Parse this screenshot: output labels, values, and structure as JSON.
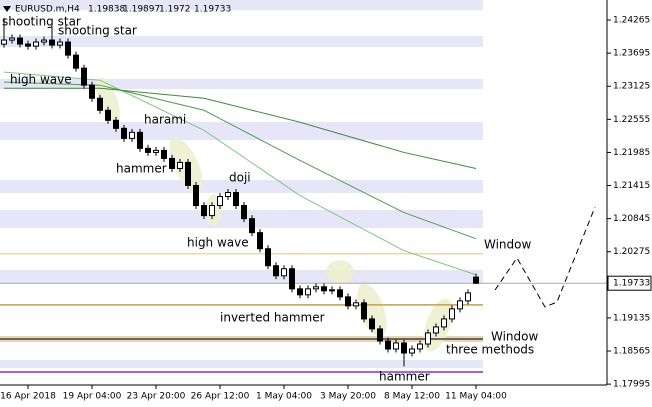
{
  "chart_data": {
    "type": "candlestick",
    "title": "EURUSD.m,H4",
    "categories": [
      null,
      null,
      null,
      "16 Apr 2018",
      null,
      null,
      null,
      null,
      null,
      null,
      null,
      "19 Apr 04:00",
      null,
      null,
      null,
      null,
      null,
      null,
      null,
      "23 Apr 20:00",
      null,
      null,
      null,
      null,
      null,
      null,
      null,
      "26 Apr 12:00",
      null,
      null,
      null,
      null,
      null,
      null,
      null,
      "1 May 04:00",
      null,
      null,
      null,
      null,
      null,
      null,
      null,
      "3 May 20:00",
      null,
      null,
      null,
      null,
      null,
      null,
      null,
      "8 May 12:00",
      null,
      null,
      null,
      null,
      null,
      null,
      null,
      "11 May 04:00"
    ],
    "open": [
      1.2385,
      1.2392,
      1.23955,
      1.23851,
      1.23816,
      1.23886,
      1.2392,
      1.23834,
      1.23886,
      1.23661,
      1.23436,
      1.23143,
      1.22918,
      1.22711,
      1.22538,
      1.224,
      1.22227,
      1.22331,
      1.22055,
      1.21985,
      1.2202,
      1.21882,
      1.21709,
      1.21813,
      1.21416,
      1.2107,
      1.20897,
      1.2107,
      1.21225,
      1.21295,
      1.2107,
      1.20845,
      1.20604,
      1.20327,
      1.20034,
      1.19861,
      1.19982,
      1.19636,
      1.19533,
      1.19636,
      1.19671,
      1.19602,
      1.19619,
      1.19498,
      1.19343,
      1.19395,
      1.19118,
      1.18946,
      1.18738,
      1.186,
      1.18704,
      1.18531,
      1.186,
      1.18686,
      1.18876,
      1.1898,
      1.19118,
      1.19291,
      1.19429,
      1.19838
    ],
    "high": [
      1.243,
      1.24015,
      1.24015,
      1.23911,
      1.23946,
      1.2398,
      1.2415,
      1.23946,
      1.23946,
      1.23721,
      1.23496,
      1.23203,
      1.22978,
      1.22771,
      1.22598,
      1.2246,
      1.22391,
      1.22391,
      1.22115,
      1.2208,
      1.2208,
      1.21942,
      1.21873,
      1.21873,
      1.21476,
      1.2113,
      1.2113,
      1.21285,
      1.21355,
      1.21355,
      1.2113,
      1.20905,
      1.20664,
      1.20387,
      1.20094,
      1.20042,
      1.20042,
      1.19696,
      1.19696,
      1.19731,
      1.19731,
      1.19679,
      1.19679,
      1.19558,
      1.19455,
      1.19455,
      1.19178,
      1.19006,
      1.18798,
      1.18764,
      1.18764,
      1.1866,
      1.18746,
      1.18936,
      1.1904,
      1.19178,
      1.19351,
      1.19489,
      1.19627,
      1.19897
    ],
    "low": [
      1.2379,
      1.2386,
      1.23791,
      1.23756,
      1.23756,
      1.23826,
      1.23774,
      1.23774,
      1.23601,
      1.23376,
      1.23083,
      1.22858,
      1.22651,
      1.22478,
      1.2234,
      1.22167,
      1.22167,
      1.21995,
      1.21925,
      1.21925,
      1.21822,
      1.21649,
      1.21649,
      1.21356,
      1.2101,
      1.20837,
      1.20837,
      1.2101,
      1.21165,
      1.2101,
      1.20785,
      1.20544,
      1.20267,
      1.19974,
      1.19801,
      1.19801,
      1.19576,
      1.19473,
      1.19473,
      1.19576,
      1.19542,
      1.19542,
      1.19438,
      1.19283,
      1.19283,
      1.19058,
      1.18886,
      1.18678,
      1.1854,
      1.1854,
      1.183,
      1.18471,
      1.1854,
      1.18626,
      1.18816,
      1.1892,
      1.19058,
      1.19231,
      1.19369,
      1.1972
    ],
    "close": [
      1.2392,
      1.23955,
      1.23851,
      1.23816,
      1.23886,
      1.2392,
      1.23834,
      1.23886,
      1.23661,
      1.23436,
      1.23143,
      1.22918,
      1.22711,
      1.22538,
      1.224,
      1.22227,
      1.22331,
      1.22055,
      1.21985,
      1.2202,
      1.21882,
      1.21709,
      1.21813,
      1.21416,
      1.2107,
      1.20897,
      1.2107,
      1.21225,
      1.21295,
      1.2107,
      1.20845,
      1.20604,
      1.20327,
      1.20034,
      1.19861,
      1.19982,
      1.19636,
      1.19533,
      1.19636,
      1.19671,
      1.19602,
      1.19619,
      1.19498,
      1.19343,
      1.19395,
      1.19118,
      1.18946,
      1.18738,
      1.186,
      1.18704,
      1.18531,
      1.186,
      1.18686,
      1.18876,
      1.1898,
      1.19118,
      1.19291,
      1.19429,
      1.19567,
      1.19733
    ],
    "up_color": "#ffffff",
    "down_color": "#000000",
    "ylim": [
      1.1798,
      1.2461
    ],
    "yticks": [
      1.24265,
      1.23695,
      1.23125,
      1.22555,
      1.21985,
      1.21415,
      1.20845,
      1.20275,
      1.19135,
      1.18565,
      1.17995
    ],
    "moving_averages": [
      {
        "color": "#7fc77f",
        "x": [
          0,
          12,
          25,
          37,
          50,
          59
        ],
        "values": [
          1.23367,
          1.23229,
          1.22366,
          1.21243,
          1.20293,
          1.19878
        ]
      },
      {
        "color": "#4f9f4f",
        "x": [
          0,
          12,
          25,
          37,
          50,
          59
        ],
        "values": [
          1.23195,
          1.23143,
          1.22711,
          1.21847,
          1.20949,
          1.205
        ]
      },
      {
        "color": "#3d8a3d",
        "x": [
          0,
          12,
          25,
          37,
          50,
          59
        ],
        "values": [
          1.23091,
          1.23091,
          1.22918,
          1.22504,
          1.21985,
          1.21709
        ]
      }
    ],
    "levels": [
      {
        "value": 1.20241,
        "color": "#f0d9a0"
      },
      {
        "value": 1.1936,
        "color": "#c8a040"
      },
      {
        "value": 1.18773,
        "color": "#404040"
      },
      {
        "value": 1.18203,
        "color": "#8a2be2"
      }
    ],
    "current_price_color": "#aaaaaa",
    "annotations": [
      {
        "text": "shooting star",
        "color": "#555555"
      },
      {
        "text": "shooting star",
        "color": "#555555"
      },
      {
        "text": "high wave",
        "color": "#555555"
      },
      {
        "text": "harami",
        "color": "#555555"
      },
      {
        "text": "hammer",
        "color": "#555555"
      },
      {
        "text": "doji",
        "color": "#555555"
      },
      {
        "text": "high wave",
        "color": "#555555"
      },
      {
        "text": "Window",
        "color": "#c8a040"
      },
      {
        "text": "inverted hammer",
        "color": "#555555"
      },
      {
        "text": "Window",
        "color": "#c8a040"
      },
      {
        "text": "three methods",
        "color": "#555555"
      },
      {
        "text": "hammer",
        "color": "#555555"
      }
    ]
  }
}
